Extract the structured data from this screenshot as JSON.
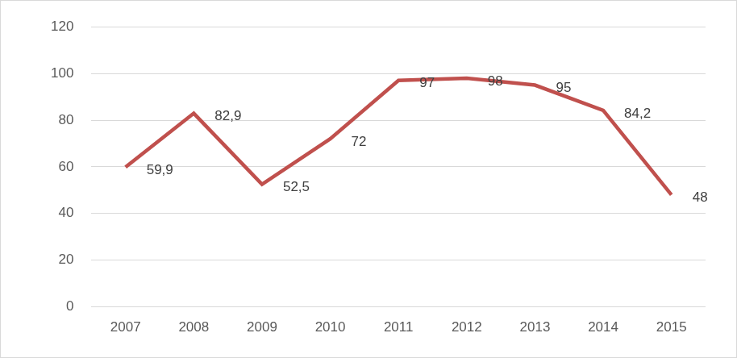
{
  "chart_data": {
    "type": "line",
    "categories": [
      "2007",
      "2008",
      "2009",
      "2010",
      "2011",
      "2012",
      "2013",
      "2014",
      "2015"
    ],
    "values": [
      59.9,
      82.9,
      52.5,
      72,
      97,
      98,
      95,
      84.2,
      48
    ],
    "value_labels": [
      "59,9",
      "82,9",
      "52,5",
      "72",
      "97",
      "98",
      "95",
      "84,2",
      "48"
    ],
    "color": "#c0504d",
    "marker": "none",
    "line_style": "solid",
    "ylim": [
      0,
      120
    ],
    "yticks": [
      0,
      20,
      40,
      60,
      80,
      100,
      120
    ],
    "grid": true,
    "data_labels": true
  }
}
